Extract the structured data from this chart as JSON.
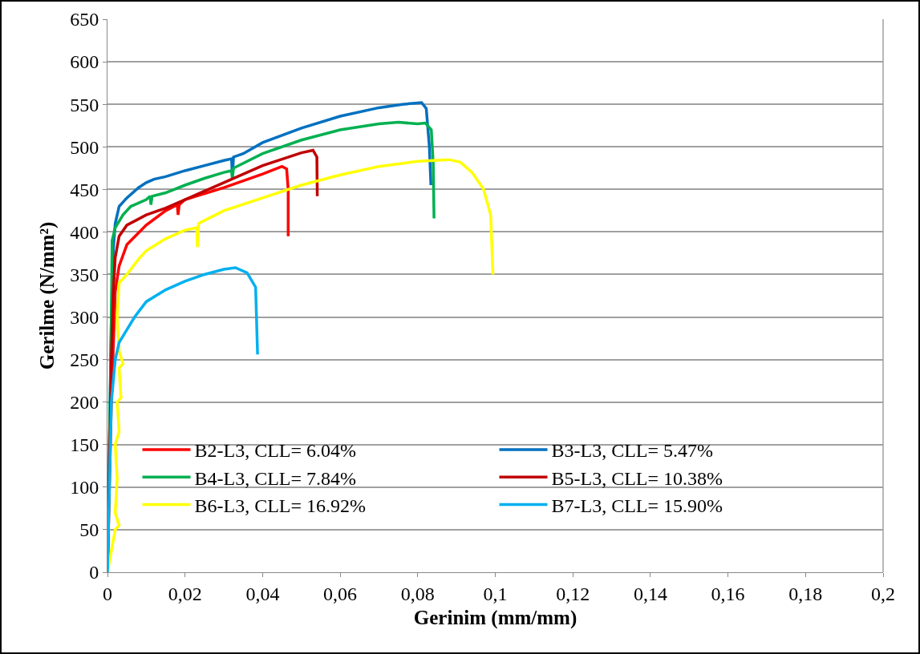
{
  "chart_data": {
    "type": "line",
    "xlabel": "Gerinim (mm/mm)",
    "ylabel": "Gerilme (N/mm²)",
    "xlim": [
      0,
      0.2
    ],
    "ylim": [
      0,
      650
    ],
    "xticks": [
      0,
      {
        "value": 0.02,
        "label": "0,02"
      },
      {
        "value": 0.04,
        "label": "0,04"
      },
      {
        "value": 0.06,
        "label": "0,06"
      },
      {
        "value": 0.08,
        "label": "0,08"
      },
      {
        "value": 0.1,
        "label": "0,1"
      },
      {
        "value": 0.12,
        "label": "0,12"
      },
      {
        "value": 0.14,
        "label": "0,14"
      },
      {
        "value": 0.16,
        "label": "0,16"
      },
      {
        "value": 0.18,
        "label": "0,18"
      },
      {
        "value": 0.2,
        "label": "0,2"
      }
    ],
    "yticks": [
      0,
      50,
      100,
      150,
      200,
      250,
      300,
      350,
      400,
      450,
      500,
      550,
      600,
      650
    ],
    "grid": "y",
    "legend": "bottom",
    "marker": "none",
    "line_style": "solid",
    "series": [
      {
        "name": "B2-L3, CLL= 6.04%",
        "color": "#ff0000",
        "x": [
          0,
          0.001,
          0.002,
          0.003,
          0.005,
          0.01,
          0.015,
          0.018,
          0.0182,
          0.0185,
          0.02,
          0.03,
          0.04,
          0.045,
          0.0462,
          0.0466,
          0.0466
        ],
        "values": [
          0,
          200,
          330,
          360,
          385,
          408,
          425,
          432,
          420,
          432,
          438,
          452,
          468,
          477,
          474,
          450,
          395
        ]
      },
      {
        "name": "B3-L3, CLL= 5.47%",
        "color": "#0070c0",
        "x": [
          0,
          0.001,
          0.0015,
          0.002,
          0.003,
          0.005,
          0.008,
          0.01,
          0.012,
          0.015,
          0.02,
          0.025,
          0.03,
          0.032,
          0.0322,
          0.0325,
          0.035,
          0.04,
          0.05,
          0.06,
          0.07,
          0.076,
          0.081,
          0.0822,
          0.083,
          0.0834
        ],
        "values": [
          0,
          300,
          380,
          410,
          430,
          440,
          452,
          458,
          462,
          465,
          472,
          478,
          484,
          486,
          465,
          488,
          492,
          505,
          522,
          536,
          546,
          550,
          552,
          545,
          500,
          455
        ]
      },
      {
        "name": "B4-L3, CLL= 7.84%",
        "color": "#00b050",
        "x": [
          0,
          0.001,
          0.0012,
          0.002,
          0.004,
          0.006,
          0.01,
          0.011,
          0.0112,
          0.0115,
          0.015,
          0.02,
          0.025,
          0.03,
          0.032,
          0.0322,
          0.0325,
          0.04,
          0.05,
          0.06,
          0.07,
          0.075,
          0.08,
          0.082,
          0.0835,
          0.084,
          0.0842
        ],
        "values": [
          0,
          300,
          390,
          405,
          420,
          430,
          438,
          442,
          432,
          442,
          446,
          455,
          463,
          470,
          472,
          463,
          475,
          492,
          508,
          520,
          527,
          529,
          527,
          528,
          520,
          480,
          416
        ]
      },
      {
        "name": "B5-L3, CLL= 10.38%",
        "color": "#c00000",
        "x": [
          0,
          0.001,
          0.0015,
          0.002,
          0.003,
          0.005,
          0.01,
          0.015,
          0.02,
          0.03,
          0.04,
          0.05,
          0.053,
          0.054,
          0.0541
        ],
        "values": [
          0,
          250,
          330,
          370,
          395,
          408,
          420,
          428,
          438,
          458,
          478,
          493,
          496,
          488,
          442
        ]
      },
      {
        "name": "B6-L3, CLL= 16.92%",
        "color": "#ffff00",
        "x": [
          0,
          0.002,
          0.003,
          0.002,
          0.0025,
          0.002,
          0.003,
          0.0025,
          0.0035,
          0.003,
          0.004,
          0.003,
          0.0025,
          0.003,
          0.005,
          0.008,
          0.01,
          0.015,
          0.02,
          0.023,
          0.0232,
          0.0235,
          0.03,
          0.04,
          0.05,
          0.06,
          0.07,
          0.08,
          0.088,
          0.091,
          0.094,
          0.097,
          0.0988,
          0.0994
        ],
        "values": [
          0,
          50,
          55,
          70,
          110,
          150,
          165,
          200,
          205,
          240,
          245,
          260,
          300,
          340,
          350,
          368,
          378,
          392,
          402,
          405,
          382,
          410,
          425,
          440,
          455,
          467,
          477,
          483,
          485,
          482,
          470,
          450,
          420,
          350
        ]
      },
      {
        "name": "B7-L3, CLL= 15.90%",
        "color": "#00b0f0",
        "x": [
          0,
          0.0005,
          0.001,
          0.002,
          0.003,
          0.005,
          0.007,
          0.01,
          0.015,
          0.02,
          0.025,
          0.03,
          0.033,
          0.036,
          0.0382,
          0.0387
        ],
        "values": [
          0,
          100,
          200,
          250,
          270,
          285,
          300,
          318,
          332,
          342,
          350,
          356,
          358,
          352,
          335,
          256
        ]
      }
    ]
  }
}
